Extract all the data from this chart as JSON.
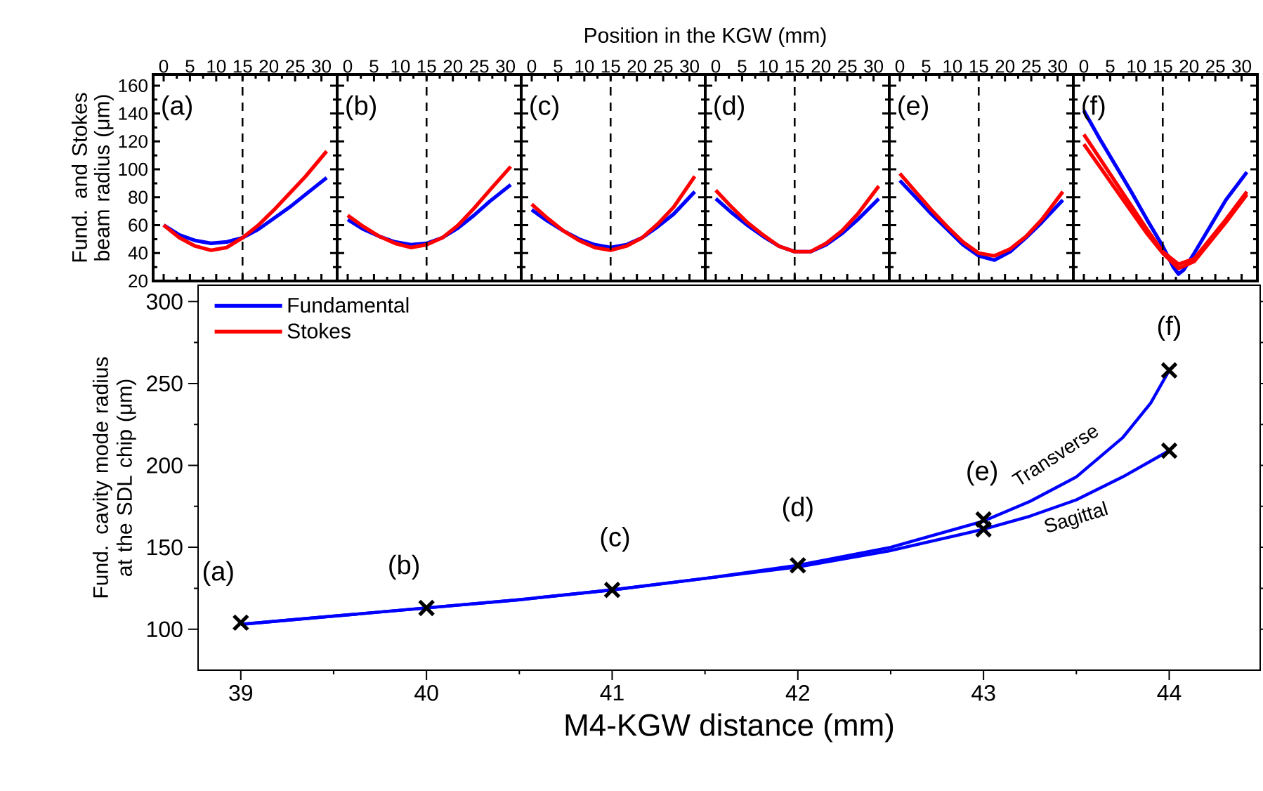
{
  "chart_data": [
    {
      "type": "line",
      "x": [
        0,
        3,
        6,
        9,
        12,
        15,
        18,
        21,
        24,
        27,
        31
      ],
      "xlim": [
        -2,
        33
      ],
      "xticks": [
        0,
        5,
        10,
        15,
        20,
        25,
        30
      ],
      "ylim": [
        20,
        168
      ],
      "yticks": [
        20,
        40,
        60,
        80,
        100,
        120,
        140,
        160
      ],
      "ylabel": "Fund. and Stokes beam radius (μm)",
      "legend": "bottom",
      "annotations": [
        "(a)"
      ],
      "ref_lines": [
        {
          "axis": "x",
          "value": 15,
          "line_style": "dashed"
        }
      ],
      "series": [
        {
          "name": "Fundamental",
          "color": "#0000ff",
          "values": [
            60,
            53,
            49,
            47,
            48,
            51,
            57,
            65,
            73,
            82,
            94
          ]
        },
        {
          "name": "Stokes",
          "color": "#ff0000",
          "values": [
            60,
            51,
            45,
            42,
            44,
            51,
            60,
            71,
            83,
            95,
            113
          ]
        }
      ]
    },
    {
      "type": "line",
      "x": [
        0,
        3,
        6,
        9,
        12,
        15,
        18,
        21,
        24,
        27,
        31
      ],
      "xlim": [
        -2,
        33
      ],
      "xticks": [
        0,
        5,
        10,
        15,
        20,
        25,
        30
      ],
      "ylim": [
        20,
        168
      ],
      "yticks": [
        20,
        40,
        60,
        80,
        100,
        120,
        140,
        160
      ],
      "tick_labels": "x",
      "annotations": [
        "(b)"
      ],
      "ref_lines": [
        {
          "axis": "x",
          "value": 15,
          "line_style": "dashed"
        }
      ],
      "series": [
        {
          "color": "#0000ff",
          "values": [
            64,
            57,
            52,
            48,
            46,
            47,
            51,
            58,
            67,
            77,
            89
          ]
        },
        {
          "color": "#ff0000",
          "values": [
            67,
            59,
            52,
            47,
            44,
            46,
            51,
            60,
            72,
            85,
            102
          ]
        }
      ]
    },
    {
      "type": "line",
      "x": [
        0,
        3,
        6,
        9,
        12,
        15,
        18,
        21,
        24,
        27,
        31
      ],
      "xlim": [
        -2,
        33
      ],
      "xticks": [
        0,
        5,
        10,
        15,
        20,
        25,
        30
      ],
      "ylim": [
        20,
        168
      ],
      "yticks": [
        20,
        40,
        60,
        80,
        100,
        120,
        140,
        160
      ],
      "tick_labels": "x",
      "xlabel": "Position in the KGW (mm)",
      "annotations": [
        "(c)"
      ],
      "ref_lines": [
        {
          "axis": "x",
          "value": 15,
          "line_style": "dashed"
        }
      ],
      "series": [
        {
          "color": "#0000ff",
          "values": [
            71,
            63,
            56,
            50,
            46,
            44,
            46,
            51,
            59,
            68,
            84
          ]
        },
        {
          "color": "#ff0000",
          "values": [
            75,
            65,
            56,
            49,
            44,
            42,
            45,
            51,
            61,
            73,
            95
          ]
        }
      ]
    },
    {
      "type": "line",
      "x": [
        0,
        3,
        6,
        9,
        12,
        15,
        18,
        21,
        24,
        27,
        31
      ],
      "xlim": [
        -2,
        33
      ],
      "xticks": [
        0,
        5,
        10,
        15,
        20,
        25,
        30
      ],
      "ylim": [
        20,
        168
      ],
      "yticks": [
        20,
        40,
        60,
        80,
        100,
        120,
        140,
        160
      ],
      "tick_labels": "x",
      "annotations": [
        "(d)"
      ],
      "ref_lines": [
        {
          "axis": "x",
          "value": 15,
          "line_style": "dashed"
        }
      ],
      "series": [
        {
          "color": "#0000ff",
          "values": [
            79,
            69,
            60,
            52,
            45,
            41,
            41,
            46,
            54,
            64,
            79
          ]
        },
        {
          "color": "#ff0000",
          "values": [
            85,
            73,
            62,
            53,
            45,
            41,
            41,
            47,
            56,
            68,
            88
          ]
        }
      ]
    },
    {
      "type": "line",
      "x": [
        0,
        3,
        6,
        9,
        12,
        15,
        18,
        21,
        24,
        27,
        31
      ],
      "xlim": [
        -2,
        33
      ],
      "xticks": [
        0,
        5,
        10,
        15,
        20,
        25,
        30
      ],
      "ylim": [
        20,
        168
      ],
      "yticks": [
        20,
        40,
        60,
        80,
        100,
        120,
        140,
        160
      ],
      "tick_labels": "x",
      "annotations": [
        "(e)"
      ],
      "ref_lines": [
        {
          "axis": "x",
          "value": 15,
          "line_style": "dashed"
        }
      ],
      "series": [
        {
          "color": "#0000ff",
          "values": [
            92,
            80,
            68,
            57,
            46,
            38,
            35,
            41,
            51,
            62,
            78
          ]
        },
        {
          "color": "#ff0000",
          "values": [
            97,
            84,
            71,
            59,
            48,
            40,
            38,
            43,
            52,
            64,
            84
          ]
        }
      ]
    },
    {
      "type": "line",
      "x": [
        0,
        3,
        6,
        9,
        12,
        15,
        18,
        21,
        24,
        27,
        31
      ],
      "xlim": [
        -2,
        33
      ],
      "xticks": [
        0,
        5,
        10,
        15,
        20,
        25,
        30
      ],
      "ylim": [
        20,
        168
      ],
      "yticks": [
        20,
        40,
        60,
        80,
        100,
        120,
        140,
        160
      ],
      "tick_labels": "x",
      "annotations": [
        "(f)"
      ],
      "ref_lines": [
        {
          "axis": "x",
          "value": 15,
          "line_style": "dashed"
        }
      ],
      "series": [
        {
          "color": "#0000ff",
          "x": [
            0,
            3,
            6,
            9,
            12,
            15,
            17,
            18,
            19,
            21,
            24,
            27,
            31
          ],
          "values": [
            142,
            122,
            103,
            84,
            64,
            45,
            30,
            25,
            28,
            40,
            59,
            78,
            98
          ]
        },
        {
          "color": "#ff0000",
          "values": [
            125,
            108,
            91,
            74,
            57,
            41,
            32,
            36,
            50,
            64,
            84
          ]
        },
        {
          "color": "#ff0000",
          "values": [
            118,
            102,
            86,
            70,
            54,
            40,
            29,
            34,
            48,
            62,
            82
          ]
        }
      ]
    },
    {
      "type": "line",
      "xlim": [
        38.77,
        44.49
      ],
      "xticks": [
        39,
        40,
        41,
        42,
        43,
        44
      ],
      "ylim": [
        75,
        310
      ],
      "yticks": [
        100,
        150,
        200,
        250,
        300
      ],
      "xlabel": "M4-KGW distance (mm)",
      "ylabel": "Fund. cavity mode radius at the SDL chip (μm)",
      "annotations": [
        {
          "text": "(a)",
          "x": 39,
          "y": 104
        },
        {
          "text": "(b)",
          "x": 40,
          "y": 113
        },
        {
          "text": "(c)",
          "x": 41,
          "y": 124
        },
        {
          "text": "(d)",
          "x": 42,
          "y": 139
        },
        {
          "text": "(e)",
          "x": 43,
          "y": 167
        },
        {
          "text": "(f)",
          "x": 44,
          "y": 258
        },
        {
          "text": "Transverse",
          "x": 43.5,
          "y": 193
        },
        {
          "text": "Sagittal",
          "x": 43.5,
          "y": 179
        }
      ],
      "series": [
        {
          "color": "#0000ff",
          "x": [
            39,
            39.5,
            40,
            40.5,
            41,
            41.5,
            42,
            42.5,
            43,
            43.25,
            43.5,
            43.75,
            43.9,
            44
          ],
          "values": [
            103,
            108,
            113,
            118,
            124,
            131,
            139,
            150,
            166,
            178,
            193,
            217,
            238,
            258
          ]
        },
        {
          "color": "#0000ff",
          "x": [
            39,
            39.5,
            40,
            40.5,
            41,
            41.5,
            42,
            42.5,
            43,
            43.25,
            43.5,
            43.75,
            44
          ],
          "values": [
            103,
            108,
            113,
            118,
            124,
            131,
            138,
            148,
            161,
            169,
            179,
            193,
            209
          ]
        },
        {
          "type": "scatter",
          "marker": "cross",
          "color": "#000000",
          "x": [
            39,
            40,
            41,
            42,
            43,
            43,
            44,
            44
          ],
          "values": [
            104,
            113,
            124,
            139,
            167,
            161,
            258,
            209
          ]
        }
      ]
    }
  ]
}
